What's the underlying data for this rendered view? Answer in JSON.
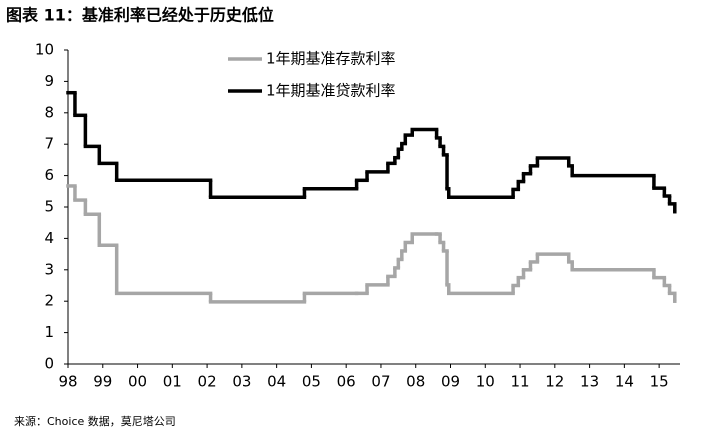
{
  "chart_data": {
    "type": "step-line",
    "title": "图表 11：基准利率已经处于历史低位",
    "source": "来源：Choice 数据，莫尼塔公司",
    "x": [
      1998.0,
      1998.2,
      1998.5,
      1998.9,
      1999.4,
      2002.1,
      2004.8,
      2006.3,
      2006.6,
      2007.2,
      2007.4,
      2007.5,
      2007.6,
      2007.7,
      2007.9,
      2008.6,
      2008.7,
      2008.8,
      2008.9,
      2008.95,
      2010.8,
      2010.95,
      2011.1,
      2011.3,
      2011.5,
      2012.4,
      2012.5,
      2014.85,
      2015.15,
      2015.3,
      2015.45
    ],
    "series": [
      {
        "name": "1年期基准存款利率",
        "color": "#a6a6a6",
        "values": [
          5.67,
          5.22,
          4.77,
          3.78,
          2.25,
          1.98,
          2.25,
          2.25,
          2.52,
          2.79,
          3.06,
          3.33,
          3.6,
          3.87,
          4.14,
          4.14,
          3.87,
          3.6,
          2.52,
          2.25,
          2.5,
          2.75,
          3.0,
          3.25,
          3.5,
          3.25,
          3.0,
          2.75,
          2.5,
          2.25,
          2.0
        ]
      },
      {
        "name": "1年期基准贷款利率",
        "color": "#000000",
        "values": [
          8.64,
          7.92,
          6.93,
          6.39,
          5.85,
          5.31,
          5.58,
          5.85,
          6.12,
          6.39,
          6.57,
          6.84,
          7.02,
          7.29,
          7.47,
          7.2,
          6.93,
          6.66,
          5.58,
          5.31,
          5.56,
          5.81,
          6.06,
          6.31,
          6.56,
          6.31,
          6.0,
          5.6,
          5.35,
          5.1,
          4.85
        ]
      }
    ],
    "xlim": [
      1998,
      2015.6
    ],
    "xticks": [
      {
        "value": 1998,
        "label": "98"
      },
      {
        "value": 1999,
        "label": "99"
      },
      {
        "value": 2000,
        "label": "00"
      },
      {
        "value": 2001,
        "label": "01"
      },
      {
        "value": 2002,
        "label": "02"
      },
      {
        "value": 2003,
        "label": "03"
      },
      {
        "value": 2004,
        "label": "04"
      },
      {
        "value": 2005,
        "label": "05"
      },
      {
        "value": 2006,
        "label": "06"
      },
      {
        "value": 2007,
        "label": "07"
      },
      {
        "value": 2008,
        "label": "08"
      },
      {
        "value": 2009,
        "label": "09"
      },
      {
        "value": 2010,
        "label": "10"
      },
      {
        "value": 2011,
        "label": "11"
      },
      {
        "value": 2012,
        "label": "12"
      },
      {
        "value": 2013,
        "label": "13"
      },
      {
        "value": 2014,
        "label": "14"
      },
      {
        "value": 2015,
        "label": "15"
      }
    ],
    "ylim": [
      0,
      10
    ],
    "yticks": [
      0,
      1,
      2,
      3,
      4,
      5,
      6,
      7,
      8,
      9,
      10
    ],
    "grid": false
  }
}
